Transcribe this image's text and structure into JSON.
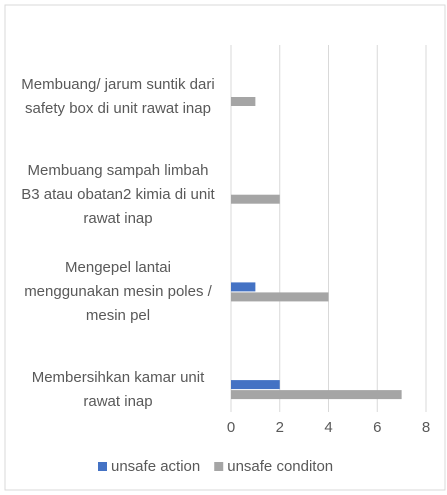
{
  "chart_data": {
    "type": "bar",
    "orientation": "horizontal",
    "categories": [
      "Membuang/ jarum suntik dari safety box di unit rawat inap",
      "Membuang sampah limbah B3 atau obatan2 kimia di unit rawat inap",
      "Mengepel lantai menggunakan mesin poles / mesin pel",
      "Membersihkan kamar unit rawat inap"
    ],
    "series": [
      {
        "name": "unsafe action",
        "color": "#4472c4",
        "values": [
          0,
          0,
          1,
          2
        ]
      },
      {
        "name": "unsafe conditon",
        "color": "#a5a5a5",
        "values": [
          1,
          2,
          4,
          7
        ]
      }
    ],
    "xlim": [
      0,
      8
    ],
    "xticks": [
      0,
      2,
      4,
      6,
      8
    ],
    "grid": true,
    "legend": "bottom"
  }
}
